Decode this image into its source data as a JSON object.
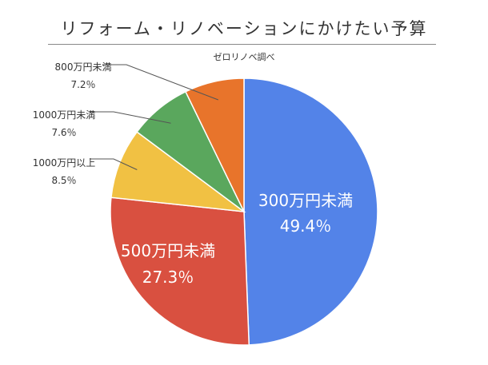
{
  "title": "リフォーム・リノベーションにかけたい予算",
  "subtitle": "ゼロリノベ調べ",
  "chart_data": {
    "type": "pie",
    "title": "リフォーム・リノベーションにかけたい予算",
    "subtitle": "ゼロリノベ調べ",
    "slices": [
      {
        "label": "300万円未満",
        "value": 49.4,
        "value_label": "49.4％",
        "color": "#5383e8"
      },
      {
        "label": "500万円未満",
        "value": 27.3,
        "value_label": "27.3％",
        "color": "#d95040"
      },
      {
        "label": "1000万円以上",
        "value": 8.5,
        "value_label": "8.5％",
        "color": "#f1c143"
      },
      {
        "label": "1000万円未満",
        "value": 7.6,
        "value_label": "7.6％",
        "color": "#5aa75d"
      },
      {
        "label": "800万円未満",
        "value": 7.2,
        "value_label": "7.2％",
        "color": "#e8742b"
      }
    ],
    "start_angle": "12 o'clock",
    "direction": "clockwise",
    "label_position": {
      "300万円未満": "inside",
      "500万円未満": "inside",
      "1000万円以上": "outside-left",
      "1000万円未満": "outside-left",
      "800万円未満": "outside-left"
    }
  }
}
